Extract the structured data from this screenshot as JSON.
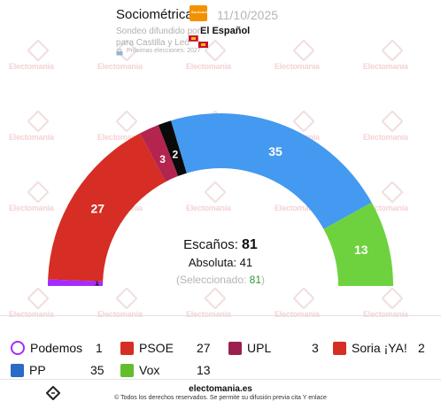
{
  "header": {
    "pollster": "Sociométrica",
    "pollster_logo_text": "Sociométrica",
    "date": "11/10/2025",
    "subtitle_line1": "Sondeo difundido por",
    "media": "El Español",
    "subtitle_line2": "para Castilla y León",
    "next_elections": "Próximas elecciones: 2027"
  },
  "watermark_text": "Electomania",
  "chart_data": {
    "type": "hemicycle",
    "total_seats": 81,
    "majority": 41,
    "selected": 81,
    "parties": [
      {
        "name": "Podemos",
        "seats": 1,
        "color": "#a52bff",
        "label": "1"
      },
      {
        "name": "PSOE",
        "seats": 27,
        "color": "#d62d25",
        "label": "27"
      },
      {
        "name": "UPL",
        "seats": 3,
        "color": "#b3244f",
        "label": "3"
      },
      {
        "name": "Soria ¡YA!",
        "seats": 2,
        "color": "#0a0a0a",
        "label": "2"
      },
      {
        "name": "PP",
        "seats": 35,
        "color": "#4499f0",
        "label": "35"
      },
      {
        "name": "Vox",
        "seats": 13,
        "color": "#6dd23e",
        "label": "13"
      }
    ]
  },
  "summary": {
    "seats_label": "Escaños:",
    "seats_value": "81",
    "majority_label": "Absoluta:",
    "majority_value": "41",
    "selected_open": "(Seleccionado: ",
    "selected_value": "81",
    "selected_close": ")"
  },
  "legend": [
    {
      "name": "Podemos",
      "value": "1",
      "icon": "podemos-icon",
      "color": "#a52bff"
    },
    {
      "name": "PSOE",
      "value": "27",
      "icon": "psoe-icon",
      "color": "#d62d25"
    },
    {
      "name": "UPL",
      "value": "3",
      "icon": "upl-icon",
      "color": "#9b1f4f"
    },
    {
      "name": "Soria ¡YA!",
      "value": "2",
      "icon": "soria-ya-icon",
      "color": "#d62d25"
    },
    {
      "name": "PP",
      "value": "35",
      "icon": "pp-icon",
      "color": "#2a6ac8"
    },
    {
      "name": "Vox",
      "value": "13",
      "icon": "vox-icon",
      "color": "#63be2e"
    }
  ],
  "footer": {
    "site": "electomania.es",
    "note": "© Todos los derechos reservados. Se permite su difusión previa cita Y enlace"
  }
}
